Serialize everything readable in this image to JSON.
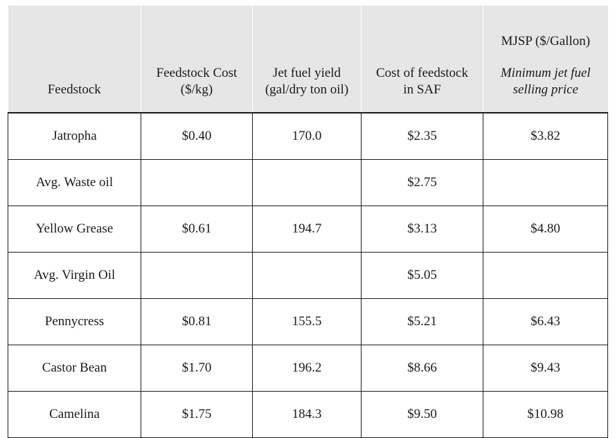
{
  "headers": {
    "feedstock": "Feedstock",
    "feedstock_cost": [
      "Feedstock Cost",
      "($/kg)"
    ],
    "jet_fuel_yield": [
      "Jet fuel yield",
      "(gal/dry ton oil)"
    ],
    "cost_in_saf": [
      "Cost of feedstock",
      "in SAF"
    ],
    "mjsp_title": "MJSP ($/Gallon)",
    "mjsp_sub": [
      "Minimum jet fuel",
      "selling price"
    ]
  },
  "rows": [
    {
      "feedstock": "Jatropha",
      "cost": "$0.40",
      "yield": "170.0",
      "saf": "$2.35",
      "mjsp": "$3.82"
    },
    {
      "feedstock": "Avg. Waste oil",
      "cost": "",
      "yield": "",
      "saf": "$2.75",
      "mjsp": ""
    },
    {
      "feedstock": "Yellow Grease",
      "cost": "$0.61",
      "yield": "194.7",
      "saf": "$3.13",
      "mjsp": "$4.80"
    },
    {
      "feedstock": "Avg. Virgin Oil",
      "cost": "",
      "yield": "",
      "saf": "$5.05",
      "mjsp": ""
    },
    {
      "feedstock": "Pennycress",
      "cost": "$0.81",
      "yield": "155.5",
      "saf": "$5.21",
      "mjsp": "$6.43"
    },
    {
      "feedstock": "Castor Bean",
      "cost": "$1.70",
      "yield": "196.2",
      "saf": "$8.66",
      "mjsp": "$9.43"
    },
    {
      "feedstock": "Camelina",
      "cost": "$1.75",
      "yield": "184.3",
      "saf": "$9.50",
      "mjsp": "$10.98"
    }
  ]
}
